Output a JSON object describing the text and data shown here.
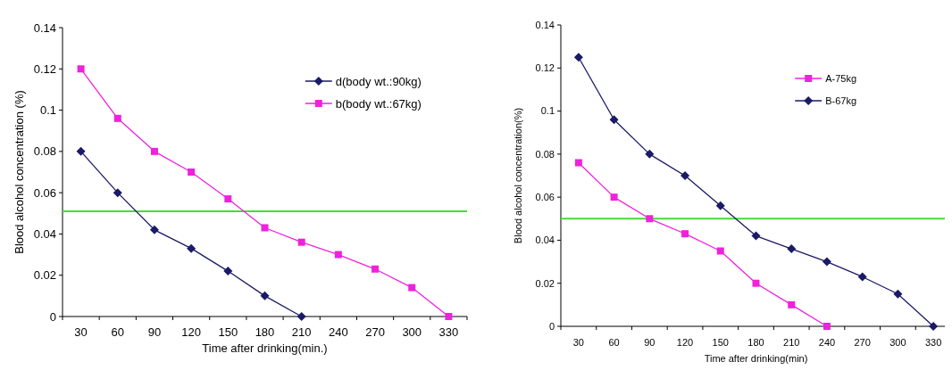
{
  "chart_data": [
    {
      "type": "line",
      "xlabel": "Time after drinking(min.)",
      "ylabel": "Blood alcohol concentration (%)",
      "categories": [
        "30",
        "60",
        "90",
        "120",
        "150",
        "180",
        "210",
        "240",
        "270",
        "300",
        "330"
      ],
      "ylim": [
        0,
        0.14
      ],
      "yticks": [
        0,
        0.02,
        0.04,
        0.06,
        0.08,
        0.1,
        0.12,
        0.14
      ],
      "grid": false,
      "legend": "top right",
      "series": [
        {
          "name": "d(body wt.:90kg)",
          "color": "#1a1a66",
          "marker": "diamond",
          "values": [
            0.08,
            0.06,
            0.042,
            0.033,
            0.022,
            0.01,
            0,
            null,
            null,
            null,
            null
          ]
        },
        {
          "name": "b(body wt.:67kg)",
          "color": "#ee22dd",
          "marker": "square",
          "values": [
            0.12,
            0.096,
            0.08,
            0.07,
            0.057,
            0.043,
            0.036,
            0.03,
            0.023,
            0.014,
            0
          ]
        }
      ],
      "ref_lines": [
        {
          "axis": "y",
          "value": 0.051,
          "color": "#44dd33"
        }
      ]
    },
    {
      "type": "line",
      "xlabel": "Time after drinking(min)",
      "ylabel": "Blood alcohol concentration(%)",
      "categories": [
        "30",
        "60",
        "90",
        "120",
        "150",
        "180",
        "210",
        "240",
        "270",
        "300",
        "330"
      ],
      "ylim": [
        0,
        0.14
      ],
      "yticks": [
        0,
        0.02,
        0.04,
        0.06,
        0.08,
        0.1,
        0.12,
        0.14
      ],
      "grid": false,
      "legend": "top right",
      "series": [
        {
          "name": "A-75kg",
          "color": "#ee22dd",
          "marker": "square",
          "values": [
            0.076,
            0.06,
            0.05,
            0.043,
            0.035,
            0.02,
            0.01,
            0,
            null,
            null,
            null
          ]
        },
        {
          "name": "B-67kg",
          "color": "#1a1a66",
          "marker": "diamond",
          "values": [
            0.125,
            0.096,
            0.08,
            0.07,
            0.056,
            0.042,
            0.036,
            0.03,
            0.023,
            0.015,
            0
          ]
        }
      ],
      "ref_lines": [
        {
          "axis": "y",
          "value": 0.05,
          "color": "#44dd33"
        }
      ]
    }
  ]
}
